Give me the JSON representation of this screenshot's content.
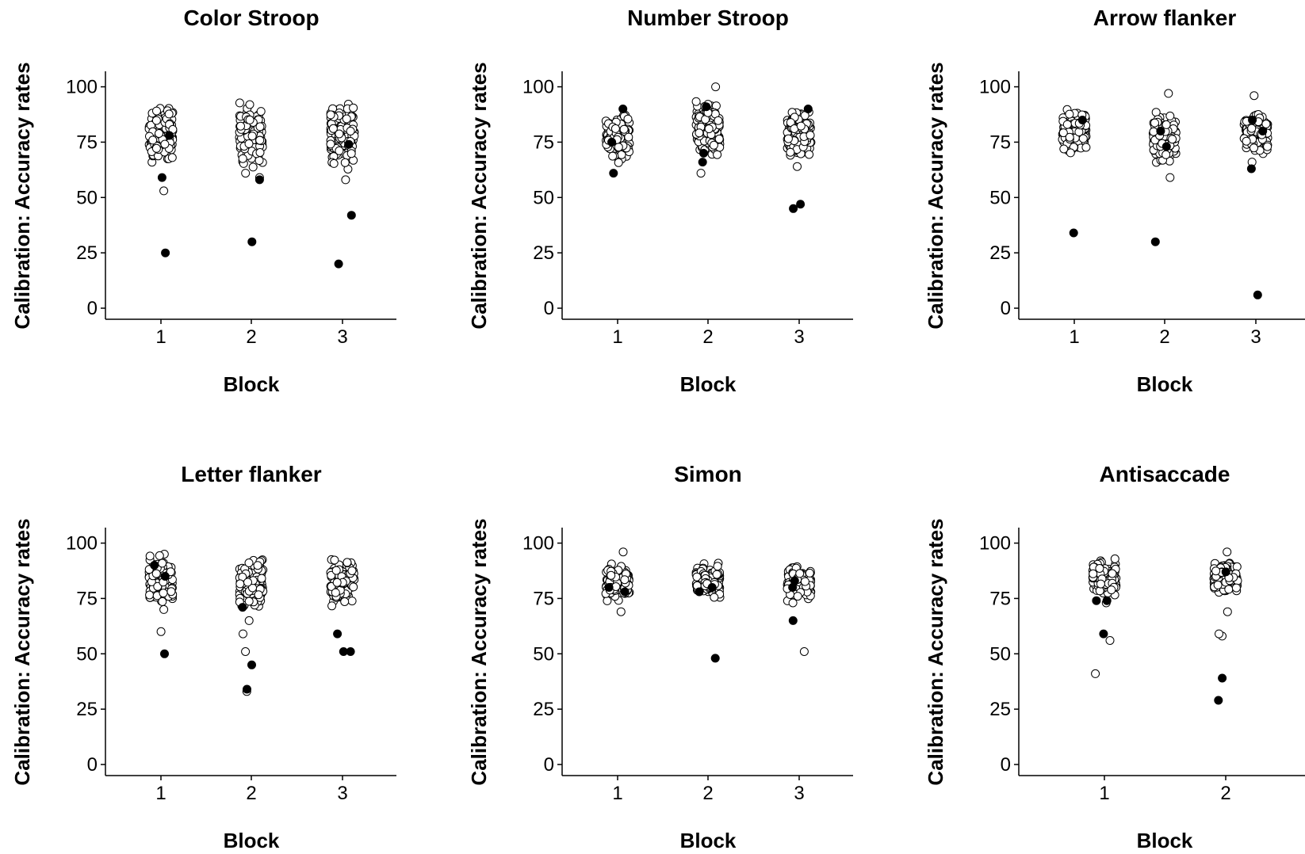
{
  "chart_data": [
    {
      "type": "scatter",
      "title": "Color Stroop",
      "xlabel": "Block",
      "ylabel": "Calibration: Accuracy rates",
      "categories": [
        "1",
        "2",
        "3"
      ],
      "yticks": [
        0,
        25,
        50,
        75,
        100
      ],
      "ylim": [
        -5,
        107
      ],
      "grid": false,
      "series": [
        {
          "marker": "filled",
          "points": [
            {
              "x": 1,
              "y": 25
            },
            {
              "x": 1,
              "y": 59
            },
            {
              "x": 1,
              "y": 78
            },
            {
              "x": 2,
              "y": 30
            },
            {
              "x": 2,
              "y": 58
            },
            {
              "x": 3,
              "y": 20
            },
            {
              "x": 3,
              "y": 42
            },
            {
              "x": 3,
              "y": 74
            }
          ]
        },
        {
          "marker": "open",
          "points": [
            {
              "x": 1,
              "y": 53
            },
            {
              "x": 2,
              "y": 59
            },
            {
              "x": 2,
              "y": 61
            },
            {
              "x": 3,
              "y": 58
            }
          ],
          "clusters": [
            {
              "x": 1,
              "ymin": 62,
              "ymax": 96
            },
            {
              "x": 2,
              "ymin": 62,
              "ymax": 94
            },
            {
              "x": 3,
              "ymin": 60,
              "ymax": 96
            }
          ]
        }
      ]
    },
    {
      "type": "scatter",
      "title": "Number Stroop",
      "xlabel": "Block",
      "ylabel": "Calibration: Accuracy rates",
      "categories": [
        "1",
        "2",
        "3"
      ],
      "yticks": [
        0,
        25,
        50,
        75,
        100
      ],
      "ylim": [
        -5,
        107
      ],
      "grid": false,
      "series": [
        {
          "marker": "filled",
          "points": [
            {
              "x": 1,
              "y": 61
            },
            {
              "x": 1,
              "y": 75
            },
            {
              "x": 1,
              "y": 90
            },
            {
              "x": 2,
              "y": 66
            },
            {
              "x": 2,
              "y": 70
            },
            {
              "x": 2,
              "y": 91
            },
            {
              "x": 3,
              "y": 45
            },
            {
              "x": 3,
              "y": 47
            },
            {
              "x": 3,
              "y": 90
            }
          ]
        },
        {
          "marker": "open",
          "points": [
            {
              "x": 2,
              "y": 100
            },
            {
              "x": 2,
              "y": 61
            },
            {
              "x": 3,
              "y": 64
            }
          ],
          "clusters": [
            {
              "x": 1,
              "ymin": 63,
              "ymax": 92
            },
            {
              "x": 2,
              "ymin": 63,
              "ymax": 96
            },
            {
              "x": 3,
              "ymin": 64,
              "ymax": 93
            }
          ]
        }
      ]
    },
    {
      "type": "scatter",
      "title": "Arrow flanker",
      "xlabel": "Block",
      "ylabel": "Calibration: Accuracy rates",
      "categories": [
        "1",
        "2",
        "3"
      ],
      "yticks": [
        0,
        25,
        50,
        75,
        100
      ],
      "ylim": [
        -5,
        107
      ],
      "grid": false,
      "series": [
        {
          "marker": "filled",
          "points": [
            {
              "x": 1,
              "y": 34
            },
            {
              "x": 1,
              "y": 85
            },
            {
              "x": 2,
              "y": 30
            },
            {
              "x": 2,
              "y": 73
            },
            {
              "x": 2,
              "y": 80
            },
            {
              "x": 3,
              "y": 6
            },
            {
              "x": 3,
              "y": 63
            },
            {
              "x": 3,
              "y": 85
            },
            {
              "x": 3,
              "y": 80
            }
          ]
        },
        {
          "marker": "open",
          "points": [
            {
              "x": 2,
              "y": 97
            },
            {
              "x": 2,
              "y": 59
            },
            {
              "x": 3,
              "y": 96
            },
            {
              "x": 3,
              "y": 66
            }
          ],
          "clusters": [
            {
              "x": 1,
              "ymin": 68,
              "ymax": 92
            },
            {
              "x": 2,
              "ymin": 62,
              "ymax": 91
            },
            {
              "x": 3,
              "ymin": 66,
              "ymax": 92
            }
          ]
        }
      ]
    },
    {
      "type": "scatter",
      "title": "Letter flanker",
      "xlabel": "Block",
      "ylabel": "Calibration: Accuracy rates",
      "categories": [
        "1",
        "2",
        "3"
      ],
      "yticks": [
        0,
        25,
        50,
        75,
        100
      ],
      "ylim": [
        -5,
        107
      ],
      "grid": false,
      "series": [
        {
          "marker": "filled",
          "points": [
            {
              "x": 1,
              "y": 50
            },
            {
              "x": 1,
              "y": 85
            },
            {
              "x": 1,
              "y": 90
            },
            {
              "x": 2,
              "y": 34
            },
            {
              "x": 2,
              "y": 45
            },
            {
              "x": 2,
              "y": 71
            },
            {
              "x": 3,
              "y": 59
            },
            {
              "x": 3,
              "y": 51
            },
            {
              "x": 3,
              "y": 51
            }
          ]
        },
        {
          "marker": "open",
          "points": [
            {
              "x": 1,
              "y": 60
            },
            {
              "x": 2,
              "y": 33
            },
            {
              "x": 2,
              "y": 51
            },
            {
              "x": 2,
              "y": 59
            },
            {
              "x": 2,
              "y": 65
            }
          ],
          "clusters": [
            {
              "x": 1,
              "ymin": 68,
              "ymax": 98
            },
            {
              "x": 2,
              "ymin": 68,
              "ymax": 95
            },
            {
              "x": 3,
              "ymin": 70,
              "ymax": 96
            }
          ]
        }
      ]
    },
    {
      "type": "scatter",
      "title": "Simon",
      "xlabel": "Block",
      "ylabel": "Calibration: Accuracy rates",
      "categories": [
        "1",
        "2",
        "3"
      ],
      "yticks": [
        0,
        25,
        50,
        75,
        100
      ],
      "ylim": [
        -5,
        107
      ],
      "grid": false,
      "series": [
        {
          "marker": "filled",
          "points": [
            {
              "x": 1,
              "y": 78
            },
            {
              "x": 1,
              "y": 80
            },
            {
              "x": 2,
              "y": 48
            },
            {
              "x": 2,
              "y": 78
            },
            {
              "x": 2,
              "y": 80
            },
            {
              "x": 3,
              "y": 65
            },
            {
              "x": 3,
              "y": 83
            },
            {
              "x": 3,
              "y": 80
            }
          ]
        },
        {
          "marker": "open",
          "points": [
            {
              "x": 1,
              "y": 69
            },
            {
              "x": 1,
              "y": 96
            },
            {
              "x": 3,
              "y": 51
            },
            {
              "x": 3,
              "y": 73
            }
          ],
          "clusters": [
            {
              "x": 1,
              "ymin": 72,
              "ymax": 93
            },
            {
              "x": 2,
              "ymin": 73,
              "ymax": 92
            },
            {
              "x": 3,
              "ymin": 73,
              "ymax": 91
            }
          ]
        }
      ]
    },
    {
      "type": "scatter",
      "title": "Antisaccade",
      "xlabel": "Block",
      "ylabel": "Calibration: Accuracy rates",
      "categories": [
        "1",
        "2"
      ],
      "yticks": [
        0,
        25,
        50,
        75,
        100
      ],
      "ylim": [
        -5,
        107
      ],
      "grid": false,
      "series": [
        {
          "marker": "filled",
          "points": [
            {
              "x": 1,
              "y": 59
            },
            {
              "x": 1,
              "y": 74
            },
            {
              "x": 1,
              "y": 74
            },
            {
              "x": 2,
              "y": 29
            },
            {
              "x": 2,
              "y": 39
            },
            {
              "x": 2,
              "y": 87
            }
          ]
        },
        {
          "marker": "open",
          "points": [
            {
              "x": 1,
              "y": 41
            },
            {
              "x": 1,
              "y": 56
            },
            {
              "x": 1,
              "y": 73
            },
            {
              "x": 2,
              "y": 58
            },
            {
              "x": 2,
              "y": 59
            },
            {
              "x": 2,
              "y": 69
            },
            {
              "x": 2,
              "y": 96
            }
          ],
          "clusters": [
            {
              "x": 1,
              "ymin": 74,
              "ymax": 95
            },
            {
              "x": 2,
              "ymin": 76,
              "ymax": 93
            }
          ]
        }
      ]
    }
  ]
}
